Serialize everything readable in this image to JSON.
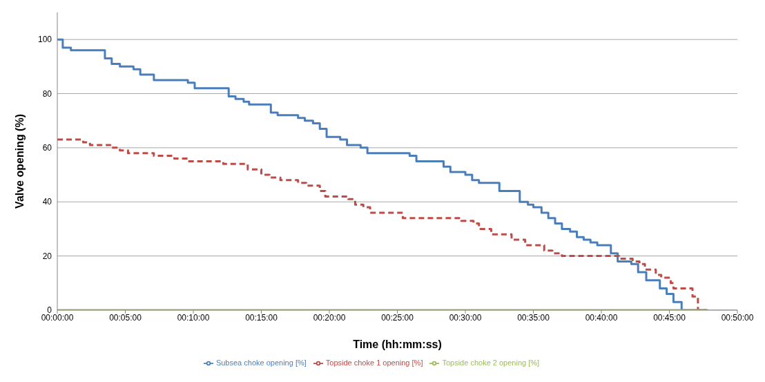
{
  "chart_data": {
    "type": "step",
    "xlabel": "Time (hh:mm:ss)",
    "ylabel": "Valve opening (%)",
    "xlim": [
      0,
      50
    ],
    "xticks": [
      {
        "value": 0,
        "label": "00:00:00"
      },
      {
        "value": 5,
        "label": "00:05:00"
      },
      {
        "value": 10,
        "label": "00:10:00"
      },
      {
        "value": 15,
        "label": "00:15:00"
      },
      {
        "value": 20,
        "label": "00:20:00"
      },
      {
        "value": 25,
        "label": "00:25:00"
      },
      {
        "value": 30,
        "label": "00:30:00"
      },
      {
        "value": 35,
        "label": "00:35:00"
      },
      {
        "value": 40,
        "label": "00:40:00"
      },
      {
        "value": 45,
        "label": "00:45:00"
      },
      {
        "value": 50,
        "label": "00:50:00"
      }
    ],
    "ylim": [
      0,
      110
    ],
    "yticks": [
      0,
      20,
      40,
      60,
      80,
      100
    ],
    "grid": "y",
    "legend": "bottom",
    "marker": "none",
    "series": [
      {
        "name": "Subsea choke opening [%]",
        "color": "#4a7ebb",
        "line_style": "solid",
        "x": [
          0,
          0.4,
          1.0,
          3.5,
          4.0,
          4.6,
          5.6,
          6.1,
          7.1,
          9.6,
          10.1,
          12.6,
          13.1,
          13.7,
          14.1,
          15.7,
          16.2,
          17.7,
          18.2,
          18.8,
          19.3,
          19.8,
          20.8,
          21.3,
          22.3,
          22.8,
          25.9,
          26.4,
          28.4,
          28.9,
          30.0,
          30.5,
          31.0,
          32.5,
          34.0,
          34.6,
          35.0,
          35.6,
          36.1,
          36.6,
          37.1,
          37.7,
          38.2,
          38.7,
          39.2,
          39.7,
          40.7,
          41.2,
          42.2,
          42.7,
          43.3,
          44.3,
          44.8,
          45.3,
          45.9,
          47.8
        ],
        "values": [
          100,
          97,
          96,
          93,
          91,
          90,
          89,
          87,
          85,
          84,
          82,
          79,
          78,
          77,
          76,
          73,
          72,
          71,
          70,
          69,
          67,
          64,
          63,
          61,
          60,
          58,
          57,
          55,
          53,
          51,
          50,
          48,
          47,
          44,
          40,
          39,
          38,
          36,
          34,
          32,
          30,
          29,
          27,
          26,
          25,
          24,
          21,
          18,
          17,
          14,
          11,
          8,
          6,
          3,
          0,
          0
        ]
      },
      {
        "name": "Topside choke 1 opening [%]",
        "color": "#be4b48",
        "line_style": "dashed",
        "x": [
          0,
          1.9,
          2.4,
          3.9,
          4.6,
          5.2,
          7.1,
          8.6,
          9.6,
          12.2,
          14.0,
          15.0,
          15.6,
          16.4,
          17.7,
          18.3,
          19.3,
          19.7,
          21.4,
          21.9,
          22.5,
          23.0,
          25.4,
          29.7,
          30.6,
          31.0,
          31.9,
          33.4,
          34.4,
          35.8,
          36.4,
          37.1,
          41.3,
          42.3,
          42.8,
          43.2,
          44.0,
          44.4,
          45.1,
          45.3,
          46.7,
          47.1,
          47.7
        ],
        "values": [
          63,
          62,
          61,
          60,
          59,
          58,
          57,
          56,
          55,
          54,
          52,
          50,
          49,
          48,
          47,
          46,
          44,
          42,
          41,
          39,
          38,
          36,
          34,
          33,
          32,
          30,
          28,
          26,
          24,
          22,
          21,
          20,
          19,
          18,
          17,
          15,
          13,
          12,
          10,
          8,
          5,
          0,
          0
        ]
      },
      {
        "name": "Topside choke 2 opening [%]",
        "color": "#9bbb59",
        "line_style": "solid",
        "x": [
          0,
          47.8
        ],
        "values": [
          0,
          0
        ]
      }
    ]
  }
}
